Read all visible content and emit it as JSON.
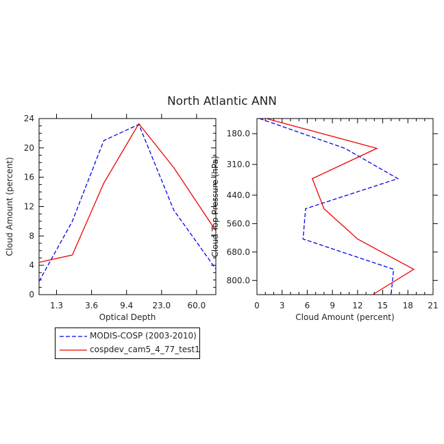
{
  "title": "North Atlantic ANN",
  "colors": {
    "modis": "#0000ee",
    "model": "#ee0000",
    "axis": "#000000"
  },
  "legend": [
    {
      "label": "MODIS-COSP (2003-2010)",
      "color": "#0000ee",
      "dash": true
    },
    {
      "label": "cospdev_cam5_4_77_test1",
      "color": "#ee0000",
      "dash": false
    }
  ],
  "chart_data": [
    {
      "type": "line",
      "xlabel": "Optical Depth",
      "ylabel": "Cloud Amount (percent)",
      "xticks": [
        "1.3",
        "3.6",
        "9.4",
        "23.0",
        "60.0"
      ],
      "xtick_positions": [
        0.5,
        1.5,
        2.5,
        3.5,
        4.5
      ],
      "xlim": [
        0,
        5.05
      ],
      "ylim": [
        0,
        24
      ],
      "yticks": [
        "0",
        "4",
        "8",
        "12",
        "16",
        "20",
        "24"
      ],
      "x": [
        0,
        0.95,
        1.85,
        2.85,
        3.85,
        5.05
      ],
      "series": [
        {
          "name": "MODIS-COSP (2003-2010)",
          "values": [
            1.8,
            10.0,
            21.0,
            23.2,
            11.5,
            3.5
          ]
        },
        {
          "name": "cospdev_cam5_4_77_test1",
          "values": [
            4.4,
            5.4,
            15.2,
            23.3,
            17.3,
            8.7
          ]
        }
      ]
    },
    {
      "type": "line",
      "xlabel": "Cloud Amount (percent)",
      "ylabel": "Cloud Top Pressure (hPa)",
      "xticks": [
        "0",
        "3",
        "6",
        "9",
        "12",
        "15",
        "18",
        "21"
      ],
      "xlim": [
        0,
        21
      ],
      "yticks": [
        "180.0",
        "310.0",
        "440.0",
        "560.0",
        "680.0",
        "800.0"
      ],
      "ytick_positions": [
        180,
        310,
        440,
        560,
        680,
        800
      ],
      "ylim": [
        116,
        860
      ],
      "y": [
        116,
        242,
        370,
        497,
        625,
        753,
        860
      ],
      "series": [
        {
          "name": "MODIS-COSP (2003-2010)",
          "values": [
            0.3,
            10.5,
            16.8,
            5.8,
            5.5,
            16.3,
            16.0
          ]
        },
        {
          "name": "cospdev_cam5_4_77_test1",
          "values": [
            1.1,
            14.3,
            6.6,
            8.0,
            12.0,
            18.7,
            13.8
          ]
        }
      ]
    }
  ]
}
